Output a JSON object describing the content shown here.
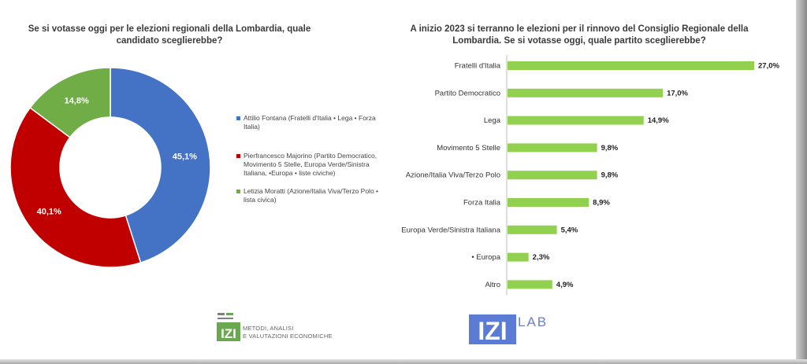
{
  "left_title": "Se si votasse oggi per le elezioni regionali della Lombardia, quale candidato sceglierebbe?",
  "right_title": "A inizio 2023 si terranno le elezioni per il rinnovo del Consiglio Regionale della Lombardia.  Se si votasse oggi, quale partito sceglierebbe?",
  "chart_data": [
    {
      "type": "pie",
      "donut": true,
      "slices": [
        {
          "name": "Attilio Fontana (Fratelli d'Italia • Lega • Forza Italia)",
          "value": 45.1,
          "label": "45,1%",
          "color": "#4472C4"
        },
        {
          "name": "Pierfrancesco Majorino (Partito Democratico, Movimento 5 Stelle, Europa Verde/Sinistra Italiana, •Europa • liste civiche)",
          "value": 40.1,
          "label": "40,1%",
          "color": "#C00000"
        },
        {
          "name": "Letizia Moratti (Azione/Italia Viva/Terzo Polo • lista civica)",
          "value": 14.8,
          "label": "14,8%",
          "color": "#70AD47"
        }
      ],
      "legend_position": "right"
    },
    {
      "type": "bar",
      "orientation": "horizontal",
      "categories": [
        "Fratelli d'Italia",
        "Partito Democratico",
        "Lega",
        "Movimento 5 Stelle",
        "Azione/Italia Viva/Terzo Polo",
        "Forza Italia",
        "Europa Verde/Sinistra Italiana",
        "• Europa",
        "Altro"
      ],
      "values": [
        27.0,
        17.0,
        14.9,
        9.8,
        9.8,
        8.9,
        5.4,
        2.3,
        4.9
      ],
      "value_labels": [
        "27,0%",
        "17,0%",
        "14,9%",
        "9,8%",
        "9,8%",
        "8,9%",
        "5,4%",
        "2,3%",
        "4,9%"
      ],
      "color": "#92D050",
      "xlim": [
        0,
        27.0
      ]
    }
  ],
  "logos": {
    "left_text_line1": "METODI, ANALISI",
    "left_text_line2": "E VALUTAZIONI ECONOMICHE",
    "left_mark_text": "IZI",
    "right_mark_text": "IZI",
    "right_lab_text": "LAB",
    "left_color": "#6aa84f",
    "right_color": "#5b7bd5"
  }
}
